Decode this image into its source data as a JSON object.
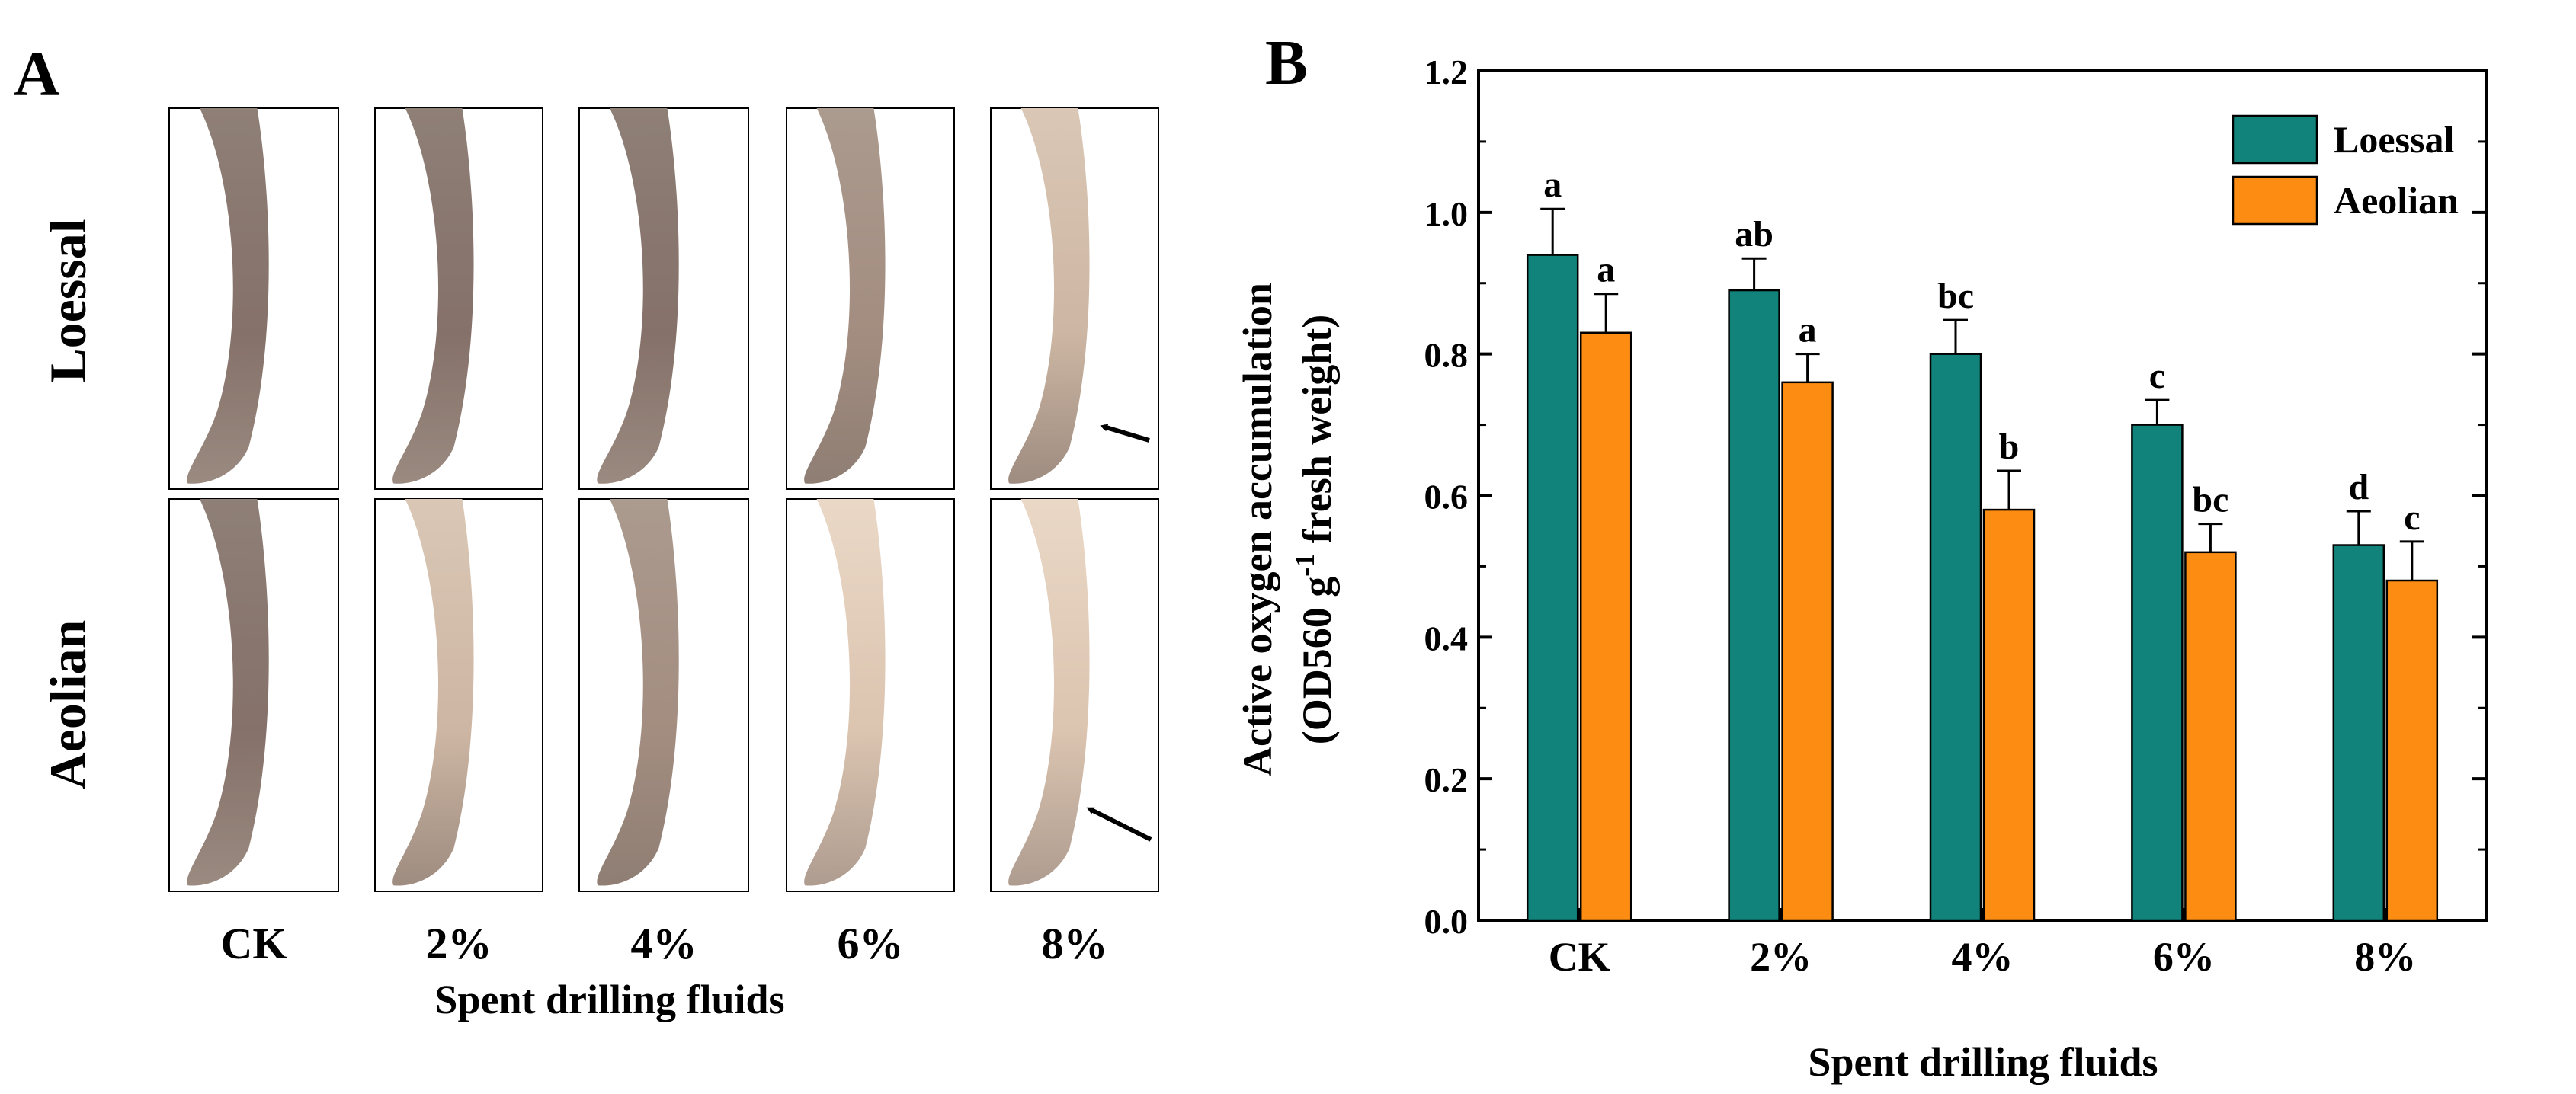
{
  "panel_a": {
    "label": "A",
    "row_labels": [
      "Loessal",
      "Aeolian"
    ],
    "column_labels": [
      "CK",
      "2%",
      "4%",
      "6%",
      "8%"
    ],
    "xlabel": "Spent drilling fluids"
  },
  "chart_data": {
    "type": "bar",
    "panel_label": "B",
    "title": "",
    "categories": [
      "CK",
      "2%",
      "4%",
      "6%",
      "8%"
    ],
    "series": [
      {
        "name": "Loessal",
        "color": "#11837a",
        "values": [
          0.94,
          0.89,
          0.8,
          0.7,
          0.53
        ],
        "errors": [
          0.065,
          0.045,
          0.048,
          0.035,
          0.048
        ],
        "letters": [
          "a",
          "ab",
          "bc",
          "c",
          "d"
        ]
      },
      {
        "name": "Aeolian",
        "color": "#fd8d12",
        "values": [
          0.83,
          0.76,
          0.58,
          0.52,
          0.48
        ],
        "errors": [
          0.055,
          0.04,
          0.055,
          0.04,
          0.055
        ],
        "letters": [
          "a",
          "a",
          "b",
          "bc",
          "c"
        ]
      }
    ],
    "xlabel": "Spent drilling fluids",
    "ylabel_line1": "Active oxygen accumulation",
    "ylabel_line2_main": "(OD560  g",
    "ylabel_sup": "-1",
    "ylabel_line2_tail": " fresh weight)",
    "ylim": [
      0,
      1.2
    ],
    "yticks": [
      "0.0",
      "0.2",
      "0.4",
      "0.6",
      "0.8",
      "1.0",
      "1.2"
    ],
    "grid": false,
    "legend_position": "top-right"
  }
}
